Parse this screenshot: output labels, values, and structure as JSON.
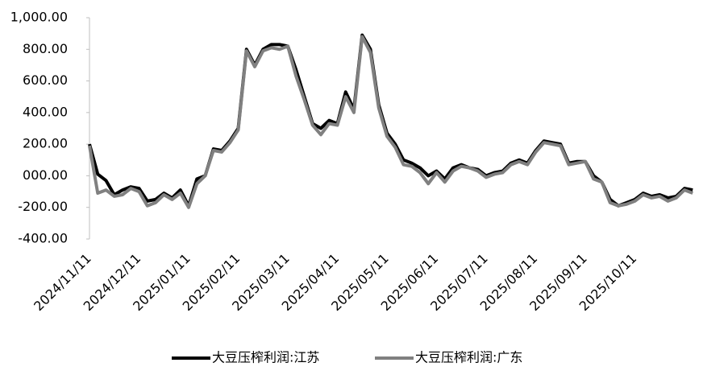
{
  "chart_data": {
    "type": "line",
    "categories": [
      "2024/11/11",
      null,
      null,
      null,
      null,
      null,
      "2024/12/11",
      null,
      null,
      null,
      null,
      null,
      "2025/01/11",
      null,
      null,
      null,
      null,
      null,
      "2025/02/11",
      null,
      null,
      null,
      null,
      null,
      "2025/03/11",
      null,
      null,
      null,
      null,
      null,
      "2025/04/11",
      null,
      null,
      null,
      null,
      null,
      "2025/05/11",
      null,
      null,
      null,
      null,
      null,
      "2025/06/11",
      null,
      null,
      null,
      null,
      null,
      "2025/07/11",
      null,
      null,
      null,
      null,
      null,
      "2025/08/11",
      null,
      null,
      null,
      null,
      null,
      "2025/09/11",
      null,
      null,
      null,
      null,
      null,
      "2025/10/11",
      null,
      null,
      null,
      null,
      null,
      null,
      null
    ],
    "series": [
      {
        "name": "大豆压榨利润:江苏",
        "color": "#000000",
        "values": [
          200,
          10,
          -30,
          -120,
          -90,
          -70,
          -80,
          -160,
          -150,
          -110,
          -140,
          -90,
          -190,
          -20,
          0,
          170,
          160,
          220,
          300,
          800,
          700,
          800,
          830,
          830,
          820,
          670,
          500,
          330,
          300,
          350,
          330,
          530,
          420,
          890,
          800,
          450,
          270,
          200,
          100,
          80,
          50,
          0,
          30,
          -20,
          50,
          70,
          50,
          40,
          0,
          20,
          30,
          80,
          100,
          80,
          160,
          220,
          210,
          200,
          80,
          90,
          90,
          0,
          -40,
          -150,
          -190,
          -170,
          -150,
          -110,
          -130,
          -120,
          -140,
          -130,
          -80,
          -90
        ]
      },
      {
        "name": "大豆压榨利润:广东",
        "color": "#808080",
        "values": [
          190,
          -110,
          -90,
          -130,
          -120,
          -80,
          -100,
          -190,
          -170,
          -120,
          -150,
          -110,
          -200,
          -50,
          0,
          160,
          150,
          210,
          290,
          790,
          690,
          790,
          810,
          800,
          820,
          630,
          480,
          320,
          260,
          330,
          320,
          500,
          400,
          880,
          780,
          430,
          250,
          180,
          70,
          60,
          20,
          -50,
          20,
          -40,
          30,
          60,
          50,
          30,
          -10,
          10,
          20,
          70,
          90,
          70,
          150,
          210,
          200,
          190,
          70,
          80,
          90,
          -20,
          -40,
          -170,
          -190,
          -180,
          -160,
          -120,
          -140,
          -130,
          -160,
          -140,
          -90,
          -110
        ]
      }
    ],
    "ylim": [
      -400,
      1000
    ],
    "yticks": [
      {
        "value": -400,
        "label": "-400.00"
      },
      {
        "value": -200,
        "label": "-200.00"
      },
      {
        "value": 0,
        "label": "000.00"
      },
      {
        "value": 200,
        "label": "200.00"
      },
      {
        "value": 400,
        "label": "400.00"
      },
      {
        "value": 600,
        "label": "600.00"
      },
      {
        "value": 800,
        "label": "800.00"
      },
      {
        "value": 1000,
        "label": "1,000.00"
      }
    ],
    "grid": false
  }
}
